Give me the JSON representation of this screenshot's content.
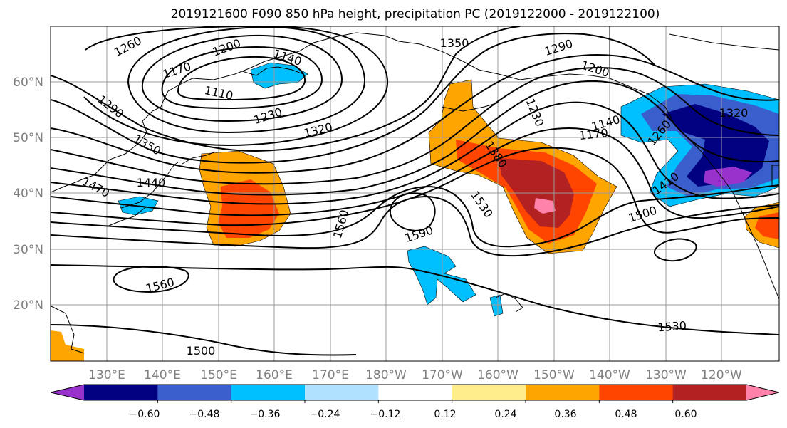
{
  "title": "2019121600 F090 850 hPa height, precipitation PC (2019122000 - 2019122100)",
  "map": {
    "lat_ticks": [
      "60°N",
      "50°N",
      "40°N",
      "30°N",
      "20°N"
    ],
    "lon_ticks": [
      "130°E",
      "140°E",
      "150°E",
      "160°E",
      "170°E",
      "180°W",
      "170°W",
      "160°W",
      "150°W",
      "140°W",
      "130°W",
      "120°W"
    ],
    "contour_labels": [
      {
        "id": "l1260",
        "text": "1260"
      },
      {
        "id": "l1200a",
        "text": "1200"
      },
      {
        "id": "l1140a",
        "text": "1140"
      },
      {
        "id": "l1170a",
        "text": "1170"
      },
      {
        "id": "l1110",
        "text": "1110"
      },
      {
        "id": "l1350a",
        "text": "1350"
      },
      {
        "id": "l1290a",
        "text": "1290"
      },
      {
        "id": "l1290b",
        "text": "1290"
      },
      {
        "id": "l1200b",
        "text": "1200"
      },
      {
        "id": "l1230a",
        "text": "1230"
      },
      {
        "id": "l1230b",
        "text": "1230"
      },
      {
        "id": "l1320a",
        "text": "1320"
      },
      {
        "id": "l1350b",
        "text": "1350"
      },
      {
        "id": "l1440",
        "text": "1440"
      },
      {
        "id": "l1470",
        "text": "1470"
      },
      {
        "id": "l1380",
        "text": "1380"
      },
      {
        "id": "l1140b",
        "text": "1140"
      },
      {
        "id": "l1170b",
        "text": "1170"
      },
      {
        "id": "l1260b",
        "text": "1260"
      },
      {
        "id": "l1320b",
        "text": "1320"
      },
      {
        "id": "l1410",
        "text": "1410"
      },
      {
        "id": "l1530a",
        "text": "1530"
      },
      {
        "id": "l1560a",
        "text": "1560"
      },
      {
        "id": "l1590",
        "text": "1590"
      },
      {
        "id": "l1500a",
        "text": "1500"
      },
      {
        "id": "l1560b",
        "text": "1560"
      },
      {
        "id": "l1530b",
        "text": "1530"
      },
      {
        "id": "l1500b",
        "text": "1500"
      }
    ]
  },
  "colorbar": {
    "labels": [
      "−0.60",
      "−0.48",
      "−0.36",
      "−0.24",
      "−0.12",
      "0.12",
      "0.24",
      "0.36",
      "0.48",
      "0.60"
    ],
    "colors": [
      "#9932cc",
      "#000080",
      "#3a5fcd",
      "#00bfff",
      "#b0e2ff",
      "#ffffff",
      "#ffec8b",
      "#ffa500",
      "#ff4500",
      "#b22222",
      "#ff82ab"
    ]
  },
  "colors": {
    "neg_strong": "#000080",
    "neg_med": "#3a5fcd",
    "neg_light": "#00bfff",
    "neg_pale": "#b0e2ff",
    "pos_pale": "#ffec8b",
    "pos_light": "#ffa500",
    "pos_med": "#ff4500",
    "pos_strong": "#b22222",
    "pos_max": "#ff82ab",
    "contour": "#000000",
    "tick_label": "#808080"
  }
}
